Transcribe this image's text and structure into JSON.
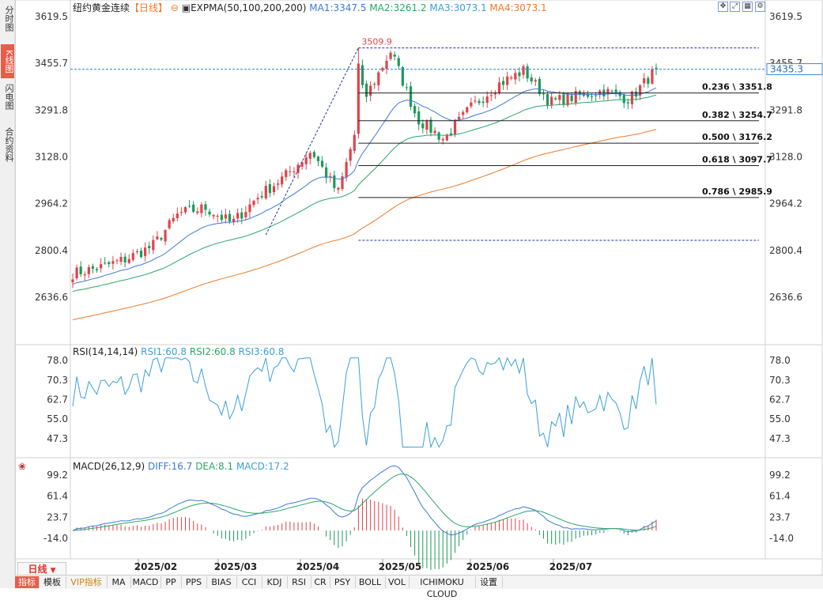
{
  "app": {
    "title": "纽约黄金连续",
    "timeframe_tag": "【日线】",
    "timeframe_button": "日线",
    "indicator_name": "EXPMA(50,100,200,200)",
    "ma1": "MA1:3347.5",
    "ma2": "MA2:3261.2",
    "ma3": "MA3:3073.1",
    "ma4": "MA4:3073.1"
  },
  "left_rail": [
    {
      "label": "分时图",
      "active": false
    },
    {
      "label": "K线图",
      "active": true
    },
    {
      "label": "闪电图",
      "active": false
    },
    {
      "label": "合约资料",
      "active": false
    }
  ],
  "top_icons": [
    "move-icon",
    "expand-icon",
    "grid-icon",
    "settings-icon"
  ],
  "colors": {
    "up": "#e0424a",
    "down": "#1c9a5c",
    "ma1": "#3b7ad8",
    "ma2": "#2aa668",
    "ma3": "#f07a28",
    "rsi": "#3aa0d8",
    "diff": "#3b7ad8",
    "dea": "#2aa668",
    "hline": "#3a8ad0"
  },
  "price_panel": {
    "axis_labels": [
      "3619.5",
      "3455.7",
      "3291.8",
      "3128.0",
      "2964.2",
      "2800.4",
      "2636.6"
    ],
    "current_price": "3435.3",
    "high_marker": "3509.9",
    "fib_levels": [
      {
        "label": "0.236 \\ 3351.8",
        "price": 3351.8
      },
      {
        "label": "0.382 \\ 3254.7",
        "price": 3254.7
      },
      {
        "label": "0.500 \\ 3176.2",
        "price": 3176.2
      },
      {
        "label": "0.618 \\ 3097.7",
        "price": 3097.7
      },
      {
        "label": "0.786 \\ 2985.9",
        "price": 2985.9
      }
    ]
  },
  "rsi_panel": {
    "title": "RSI(14,14,14)",
    "rsi1": "RSI1:60.8",
    "rsi2": "RSI2:60.8",
    "rsi3": "RSI3:60.8",
    "axis_labels": [
      "78.0",
      "70.3",
      "62.7",
      "55.0",
      "47.3"
    ]
  },
  "macd_panel": {
    "title": "MACD(26,12,9)",
    "diff": "DIFF:16.7",
    "dea": "DEA:8.1",
    "macd": "MACD:17.2",
    "axis_labels": [
      "99.2",
      "61.4",
      "23.7",
      "-14.0"
    ]
  },
  "x_axis_labels": [
    "2025/02",
    "2025/03",
    "2025/04",
    "2025/05",
    "2025/06",
    "2025/07"
  ],
  "bottom_tabs": [
    {
      "label": "指标",
      "active": true
    },
    {
      "label": "模板"
    },
    {
      "label": "VIP指标",
      "vip": true
    },
    {
      "label": "MA"
    },
    {
      "label": "MACD"
    },
    {
      "label": "PP"
    },
    {
      "label": "PPS"
    },
    {
      "label": "BIAS"
    },
    {
      "label": "CCI"
    },
    {
      "label": "KDJ"
    },
    {
      "label": "RSI"
    },
    {
      "label": "CR"
    },
    {
      "label": "PSY"
    },
    {
      "label": "BOLL"
    },
    {
      "label": "VOL"
    },
    {
      "label": "ICHIMOKU CLOUD"
    },
    {
      "label": "设置"
    }
  ],
  "chart_data": [
    {
      "type": "candlestick",
      "title": "纽约黄金连续 日线",
      "ylim": [
        2636.6,
        3619.5
      ],
      "x_range": [
        "2025/01",
        "2025/08"
      ],
      "close_anchors": [
        [
          "2025/01 start",
          2720
        ],
        [
          "2025/01 mid",
          2740
        ],
        [
          "2025/01 late",
          2770
        ],
        [
          "2025/02 start",
          2815
        ],
        [
          "2025/02 mid",
          2930
        ],
        [
          "2025/02 late",
          2950
        ],
        [
          "2025/03 start",
          2895
        ],
        [
          "2025/03 mid",
          2990
        ],
        [
          "2025/03 late",
          3060
        ],
        [
          "2025/04 start",
          3150
        ],
        [
          "2025/04 dip",
          3000
        ],
        [
          "2025/04 mid",
          3330
        ],
        [
          "2025/04 peak",
          3500
        ],
        [
          "2025/05 start",
          3260
        ],
        [
          "2025/05 mid",
          3190
        ],
        [
          "2025/05 late",
          3300
        ],
        [
          "2025/06 start",
          3380
        ],
        [
          "2025/06 mid",
          3430
        ],
        [
          "2025/06 late",
          3320
        ],
        [
          "2025/07 start",
          3340
        ],
        [
          "2025/07 mid",
          3360
        ],
        [
          "2025/07 late",
          3330
        ],
        [
          "2025/08 start",
          3435
        ]
      ],
      "high": 3509.9,
      "last": 3435.3,
      "series": [
        {
          "name": "MA1",
          "last": 3347.5
        },
        {
          "name": "MA2",
          "last": 3261.2
        },
        {
          "name": "MA3",
          "last": 3073.1
        },
        {
          "name": "MA4",
          "last": 3073.1
        }
      ],
      "fibonacci": [
        {
          "ratio": 0.236,
          "price": 3351.8
        },
        {
          "ratio": 0.382,
          "price": 3254.7
        },
        {
          "ratio": 0.5,
          "price": 3176.2
        },
        {
          "ratio": 0.618,
          "price": 3097.7
        },
        {
          "ratio": 0.786,
          "price": 2985.9
        }
      ]
    },
    {
      "type": "line",
      "title": "RSI(14,14,14)",
      "ylim": [
        47.3,
        78.0
      ],
      "series": [
        {
          "name": "RSI1",
          "last": 60.8
        },
        {
          "name": "RSI2",
          "last": 60.8
        },
        {
          "name": "RSI3",
          "last": 60.8
        }
      ]
    },
    {
      "type": "line",
      "title": "MACD(26,12,9)",
      "ylim": [
        -14.0,
        99.2
      ],
      "series": [
        {
          "name": "DIFF",
          "last": 16.7
        },
        {
          "name": "DEA",
          "last": 8.1
        },
        {
          "name": "MACD",
          "last": 17.2
        }
      ]
    }
  ]
}
